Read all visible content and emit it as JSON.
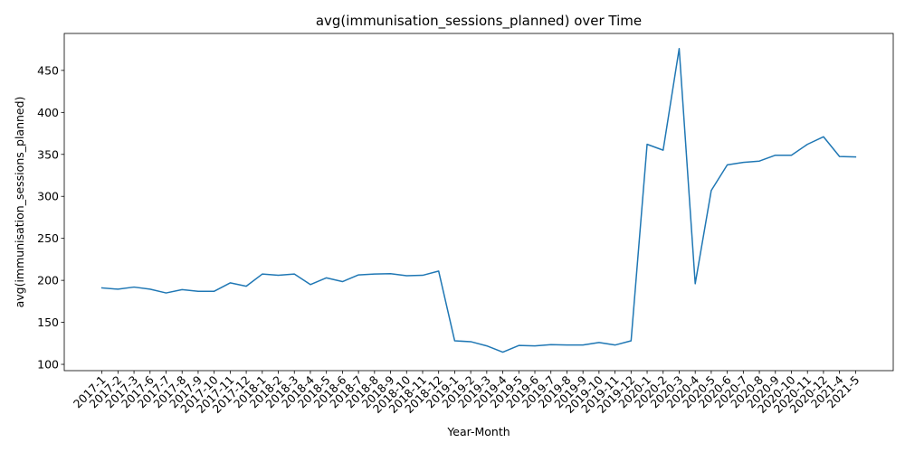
{
  "chart_data": {
    "type": "line",
    "title": "avg(immunisation_sessions_planned) over Time",
    "xlabel": "Year-Month",
    "ylabel": "avg(immunisation_sessions_planned)",
    "categories": [
      "2017-1",
      "2017-2",
      "2017-3",
      "2017-6",
      "2017-7",
      "2017-8",
      "2017-9",
      "2017-10",
      "2017-11",
      "2017-12",
      "2018-1",
      "2018-2",
      "2018-3",
      "2018-4",
      "2018-5",
      "2018-6",
      "2018-7",
      "2018-8",
      "2018-9",
      "2018-10",
      "2018-11",
      "2018-12",
      "2019-1",
      "2019-2",
      "2019-3",
      "2019-4",
      "2019-5",
      "2019-6",
      "2019-7",
      "2019-8",
      "2019-9",
      "2019-10",
      "2019-11",
      "2019-12",
      "2020-1",
      "2020-2",
      "2020-3",
      "2020-4",
      "2020-5",
      "2020-6",
      "2020-7",
      "2020-8",
      "2020-9",
      "2020-10",
      "2020-11",
      "2020-12",
      "2021-4",
      "2021-5"
    ],
    "series": [
      {
        "values": [
          191,
          189.5,
          192,
          189.5,
          185,
          189,
          187,
          187,
          197,
          193,
          207.5,
          206,
          207.5,
          195,
          203,
          198.5,
          206.5,
          207.5,
          208,
          205.5,
          206,
          211,
          128,
          127,
          122,
          114.5,
          122.5,
          122,
          123.5,
          123,
          123,
          126,
          123,
          128,
          362,
          355,
          476,
          196,
          307,
          337.5,
          340.5,
          342,
          349,
          349,
          362,
          371,
          347.5,
          347
        ]
      }
    ],
    "ylim": [
      92.5,
      494
    ],
    "yticks": [
      100,
      150,
      200,
      250,
      300,
      350,
      400,
      450
    ],
    "grid": false,
    "line_color": "#1f77b4"
  }
}
